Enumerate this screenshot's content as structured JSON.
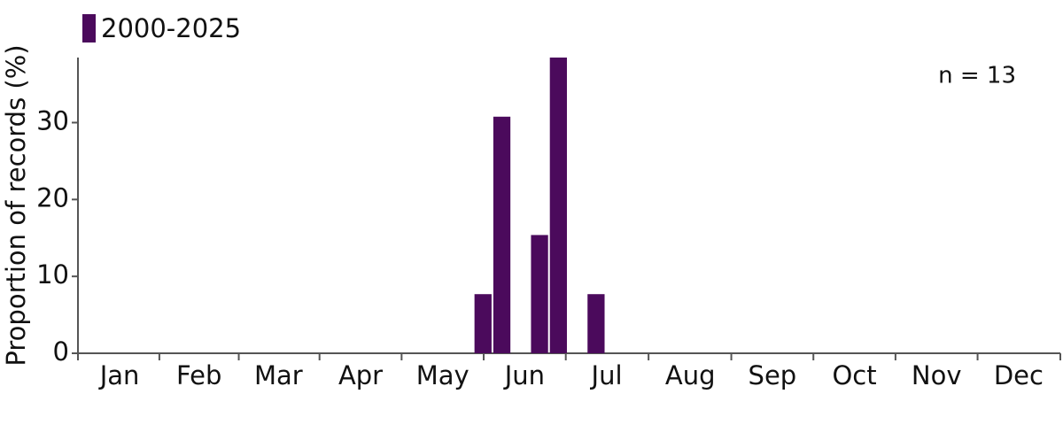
{
  "chart_data": {
    "type": "histogram",
    "legend_label": "2000-2025",
    "annotation": "n = 13",
    "y_label": "Proportion of records (%)",
    "color": "#4b0a5c",
    "bins": [
      147,
      154,
      161,
      168,
      175,
      182,
      189,
      196
    ],
    "values": [
      7.69,
      30.77,
      0,
      15.38,
      38.46,
      0,
      7.69
    ],
    "xlim": [
      0,
      365
    ],
    "xticks": [
      {
        "value": 15.5,
        "label": "Jan"
      },
      {
        "value": 45,
        "label": "Feb"
      },
      {
        "value": 74.5,
        "label": "Mar"
      },
      {
        "value": 105,
        "label": "Apr"
      },
      {
        "value": 135.5,
        "label": "May"
      },
      {
        "value": 166,
        "label": "Jun"
      },
      {
        "value": 196.5,
        "label": "Jul"
      },
      {
        "value": 227.5,
        "label": "Aug"
      },
      {
        "value": 258,
        "label": "Sep"
      },
      {
        "value": 288.5,
        "label": "Oct"
      },
      {
        "value": 319,
        "label": "Nov"
      },
      {
        "value": 349.5,
        "label": "Dec"
      }
    ],
    "ylim": [
      0,
      38.46
    ],
    "yticks": [
      0,
      10,
      20,
      30
    ]
  }
}
